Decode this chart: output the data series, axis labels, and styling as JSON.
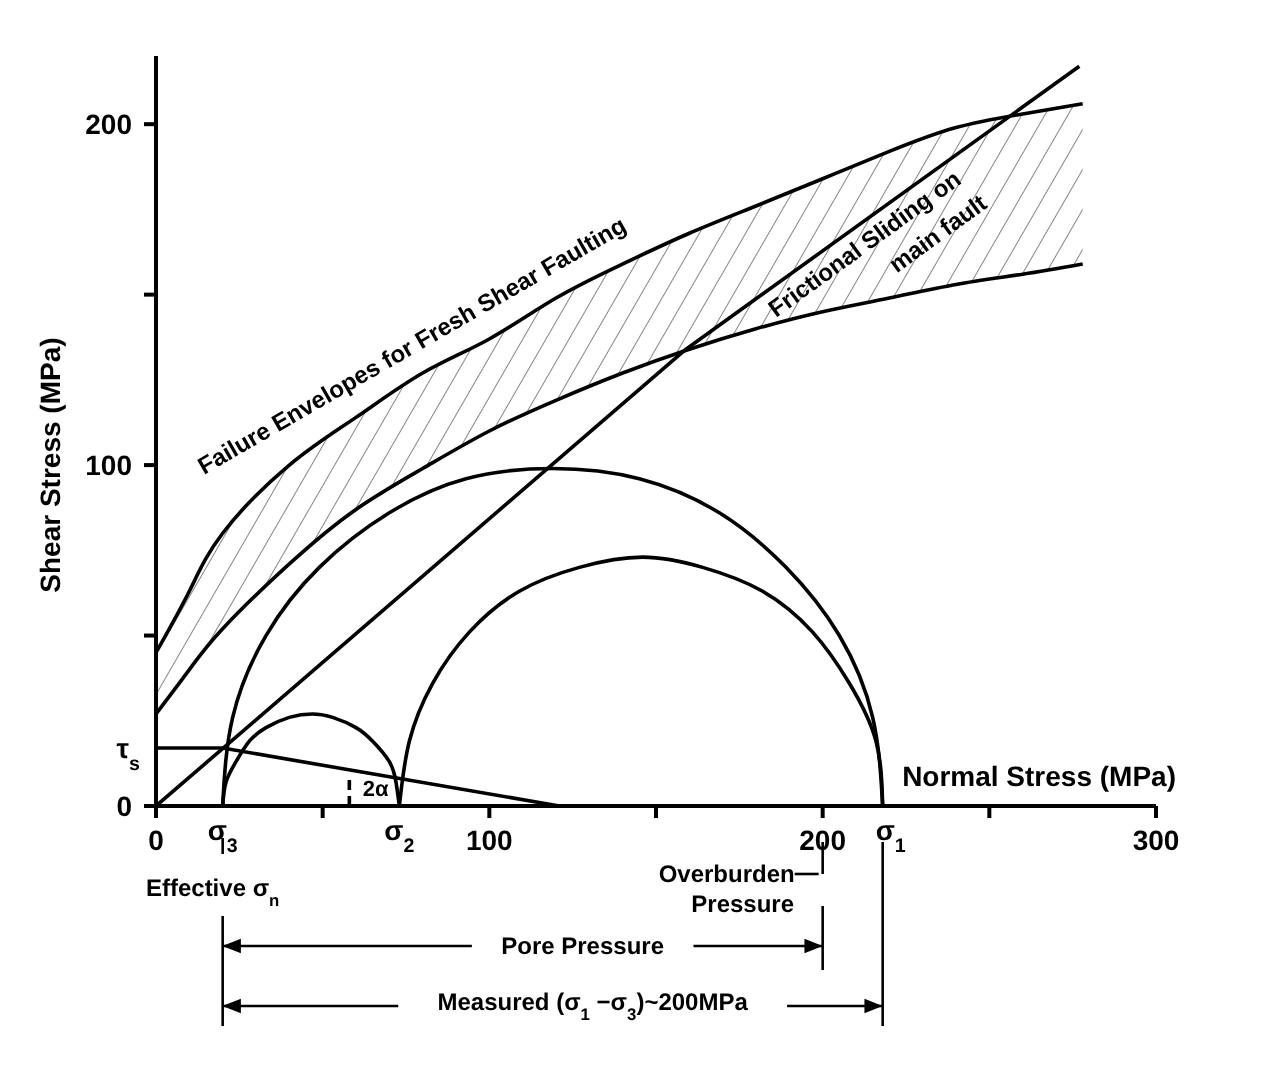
{
  "chart_data": {
    "type": "line",
    "xlabel": "Normal Stress (MPa)",
    "ylabel": "Shear Stress (MPa)",
    "xlim": [
      0,
      300
    ],
    "ylim": [
      0,
      220
    ],
    "xticks": [
      0,
      {
        "value": 50,
        "label": null
      },
      100,
      {
        "value": 150,
        "label": null
      },
      200,
      {
        "value": 250,
        "label": null
      },
      300
    ],
    "yticks": [
      0,
      {
        "value": 50,
        "label": null
      },
      100,
      {
        "value": 150,
        "label": null
      },
      200
    ],
    "grid": false,
    "marker": "none",
    "line_style": "solid",
    "series": [
      {
        "color": "#000000",
        "x": [
          0,
          10,
          20,
          40,
          60,
          80,
          100,
          120,
          140,
          160,
          180,
          200,
          220,
          240,
          260,
          278
        ],
        "values": [
          45,
          63,
          80,
          100,
          114,
          127,
          137,
          149,
          159,
          168,
          176,
          184,
          192,
          199,
          203,
          206
        ],
        "lower": [
          27,
          40,
          52,
          71,
          87,
          99,
          110,
          119,
          127,
          134,
          140,
          145,
          149,
          153,
          156,
          159
        ],
        "upper": [
          45,
          63,
          80,
          100,
          114,
          127,
          137,
          149,
          159,
          168,
          176,
          184,
          192,
          199,
          203,
          206
        ]
      },
      {
        "color": "#000000",
        "x": [
          0,
          10,
          20,
          40,
          60,
          80,
          100,
          120,
          140,
          160,
          180,
          200,
          220,
          240,
          260,
          278
        ],
        "values": [
          27,
          40,
          52,
          71,
          87,
          99,
          110,
          119,
          127,
          134,
          140,
          145,
          149,
          153,
          156,
          159
        ]
      },
      {
        "color": "#000000",
        "x": [
          0,
          159,
          277
        ],
        "values": [
          0,
          134,
          217
        ]
      },
      {
        "color": "#000000",
        "x": [
          218,
          215,
          205,
          189,
          169,
          145,
          119,
          93,
          70,
          49,
          33,
          23,
          20
        ],
        "values": [
          0,
          26,
          50,
          70,
          86,
          96,
          99,
          96,
          86,
          70,
          50,
          26,
          0
        ]
      },
      {
        "color": "#000000",
        "x": [
          218,
          216,
          208,
          197,
          182,
          164,
          146,
          127,
          109,
          94,
          83,
          76,
          73
        ],
        "values": [
          0,
          19,
          36,
          51,
          63,
          70,
          73,
          70,
          63,
          51,
          36,
          19,
          0
        ]
      },
      {
        "color": "#000000",
        "x": [
          73,
          72,
          70,
          65,
          60,
          53,
          47,
          40,
          33,
          28,
          24,
          21,
          20
        ],
        "values": [
          0,
          7,
          13,
          19,
          23,
          26,
          27,
          26,
          23,
          19,
          13,
          7,
          0
        ]
      },
      {
        "color": "#000000",
        "x": [
          0,
          20,
          121
        ],
        "values": [
          17,
          17,
          0
        ]
      },
      {
        "color": "#000000",
        "x": [
          58,
          58
        ],
        "values": [
          0,
          9
        ],
        "line_style": "dashed"
      }
    ],
    "annotations": [
      "Failure Envelopes for Fresh Shear Faulting",
      "Frictional Sliding on",
      "main fault",
      "2α",
      "Effective σ$_{n}$",
      "Overburden Pressure",
      "Pore Pressure",
      "Measured (σ$_{1}$ −σ$_{3}$)~200MPa",
      {
        "text": "σ$_{3}$",
        "x": 20,
        "y": 0
      },
      {
        "text": "σ$_{2}$",
        "x": 73,
        "y": 0
      },
      {
        "text": "σ$_{1}$",
        "x": 218,
        "y": 0
      },
      {
        "text": "τ$_{s}$",
        "x": 0,
        "y": 17
      }
    ]
  }
}
